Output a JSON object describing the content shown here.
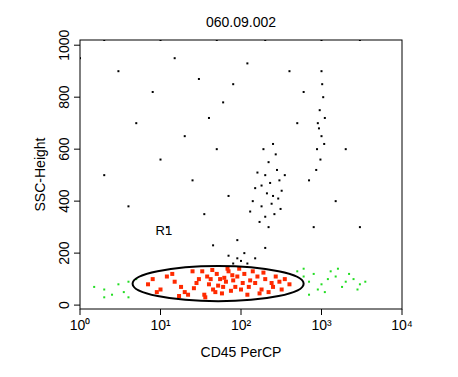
{
  "chart_data": {
    "type": "scatter",
    "title": "060.09.002",
    "x_label": "CD45 PerCP",
    "y_label": "SSC-Height",
    "log": "x",
    "xlim": [
      1,
      10000
    ],
    "xticks": [
      {
        "value": 1,
        "label": "10⁰"
      },
      {
        "value": 10,
        "label": "10¹"
      },
      {
        "value": 100,
        "label": "10²"
      },
      {
        "value": 1000,
        "label": "10³"
      },
      {
        "value": 10000,
        "label": "10⁴"
      }
    ],
    "ylim": [
      -15,
      1020
    ],
    "yticks": [
      0,
      200,
      400,
      600,
      800,
      1000
    ],
    "region": {
      "label": "R1",
      "x": [
        4.5,
        600
      ],
      "y": [
        15,
        150
      ],
      "label_x": 11,
      "label_y": 270
    },
    "series": [
      {
        "color": "#000000",
        "marker": "dot",
        "x": [
          150,
          200,
          180,
          250,
          220,
          300,
          170,
          260,
          190,
          230,
          140,
          280,
          210,
          160,
          240,
          320,
          200,
          270,
          180,
          350,
          130,
          290,
          250,
          220,
          310,
          900,
          950,
          1000,
          1050,
          880,
          1100,
          970,
          1020,
          930,
          1080,
          1000,
          860,
          3,
          8,
          15,
          30,
          60,
          120,
          5,
          20,
          40,
          80,
          10,
          25,
          50,
          400,
          600,
          2,
          4,
          12,
          35,
          70,
          500,
          700,
          2000,
          3000,
          1500,
          90,
          45,
          110,
          150,
          70,
          200,
          800,
          1,
          2,
          10,
          50,
          200,
          1000,
          3000,
          100,
          120,
          80,
          90
        ],
        "values": [
          450,
          500,
          380,
          420,
          550,
          480,
          320,
          350,
          600,
          470,
          400,
          520,
          430,
          510,
          390,
          440,
          340,
          580,
          460,
          500,
          360,
          410,
          620,
          300,
          370,
          700,
          750,
          650,
          800,
          600,
          720,
          560,
          850,
          680,
          620,
          900,
          520,
          900,
          820,
          950,
          870,
          780,
          930,
          700,
          650,
          720,
          850,
          560,
          480,
          600,
          900,
          820,
          500,
          380,
          300,
          350,
          420,
          700,
          480,
          600,
          300,
          400,
          250,
          230,
          200,
          180,
          190,
          220,
          300,
          950,
          1020,
          1020,
          1020,
          1020,
          1020,
          1020,
          170,
          160,
          160,
          180
        ]
      },
      {
        "color": "#ff2a00",
        "marker": "dot",
        "x": [
          10,
          15,
          20,
          30,
          40,
          50,
          60,
          80,
          100,
          150,
          200,
          250,
          7,
          12,
          25,
          35,
          45,
          55,
          70,
          90,
          120,
          180,
          300,
          400,
          8,
          18,
          28,
          38,
          48,
          65,
          75,
          110,
          130,
          160,
          220,
          350,
          22,
          33,
          42,
          58,
          85,
          95,
          140,
          170,
          270,
          14,
          26,
          52,
          68,
          105,
          190,
          320,
          9,
          17,
          36,
          62,
          125,
          240,
          44,
          78
        ],
        "values": [
          60,
          90,
          50,
          100,
          80,
          120,
          70,
          95,
          60,
          85,
          100,
          70,
          80,
          110,
          130,
          40,
          60,
          100,
          130,
          110,
          40,
          60,
          90,
          80,
          100,
          70,
          85,
          110,
          50,
          90,
          55,
          120,
          95,
          110,
          50,
          100,
          40,
          130,
          100,
          45,
          70,
          140,
          130,
          45,
          110,
          120,
          65,
          75,
          140,
          85,
          125,
          60,
          50,
          35,
          30,
          105,
          70,
          85,
          135,
          115
        ]
      },
      {
        "color": "#22dd22",
        "marker": "dot",
        "x": [
          2,
          3,
          2.5,
          4,
          3.5,
          1.5,
          5,
          2,
          700,
          800,
          1000,
          1200,
          1500,
          2000,
          2500,
          3000,
          900,
          1300,
          1800,
          600,
          1100,
          2200,
          3500,
          4,
          600,
          1600,
          2800,
          700,
          500
        ],
        "values": [
          60,
          80,
          40,
          90,
          50,
          70,
          100,
          30,
          90,
          120,
          80,
          100,
          110,
          90,
          100,
          80,
          60,
          130,
          70,
          110,
          50,
          120,
          90,
          30,
          140,
          140,
          60,
          40,
          130
        ]
      }
    ]
  }
}
